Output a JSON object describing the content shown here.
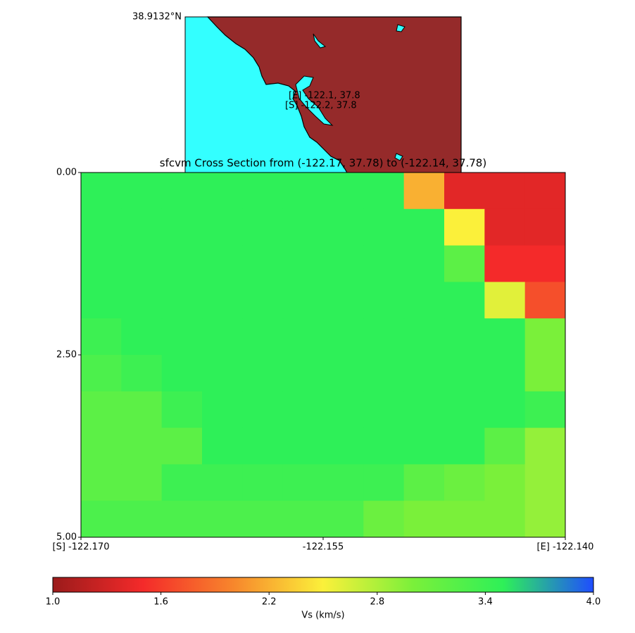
{
  "chart_data": {
    "type": "heatmap",
    "title": "sfcvm Cross Section from (-122.17, 37.78) to (-122.14, 37.78)",
    "xlim": [
      -122.17,
      -122.14
    ],
    "xticks": [
      {
        "value": -122.17,
        "label": "[S] -122.170"
      },
      {
        "value": -122.155,
        "label": "-122.155"
      },
      {
        "value": -122.14,
        "label": "[E] -122.140"
      }
    ],
    "ylim": [
      0,
      5
    ],
    "yticks": [
      {
        "value": 0,
        "label": "0.00"
      },
      {
        "value": 2.5,
        "label": "2.50"
      },
      {
        "value": 5,
        "label": "5.00"
      }
    ],
    "z": [
      [
        3.5,
        3.5,
        3.5,
        3.5,
        3.5,
        3.5,
        3.5,
        3.5,
        2.2,
        1.4,
        1.4,
        1.4
      ],
      [
        3.5,
        3.5,
        3.5,
        3.5,
        3.5,
        3.5,
        3.5,
        3.5,
        3.5,
        2.5,
        1.4,
        1.4
      ],
      [
        3.5,
        3.5,
        3.5,
        3.5,
        3.5,
        3.5,
        3.5,
        3.5,
        3.5,
        3.2,
        1.5,
        1.5
      ],
      [
        3.5,
        3.5,
        3.5,
        3.5,
        3.5,
        3.5,
        3.5,
        3.5,
        3.5,
        3.5,
        2.6,
        1.7
      ],
      [
        3.4,
        3.5,
        3.5,
        3.5,
        3.5,
        3.5,
        3.5,
        3.5,
        3.5,
        3.5,
        3.5,
        3.0
      ],
      [
        3.3,
        3.4,
        3.5,
        3.5,
        3.5,
        3.5,
        3.5,
        3.5,
        3.5,
        3.5,
        3.5,
        3.0
      ],
      [
        3.2,
        3.2,
        3.4,
        3.5,
        3.5,
        3.5,
        3.5,
        3.5,
        3.5,
        3.5,
        3.5,
        3.4
      ],
      [
        3.2,
        3.2,
        3.2,
        3.5,
        3.5,
        3.5,
        3.5,
        3.5,
        3.5,
        3.5,
        3.2,
        2.9
      ],
      [
        3.2,
        3.2,
        3.4,
        3.4,
        3.4,
        3.4,
        3.4,
        3.4,
        3.2,
        3.1,
        3.0,
        2.9
      ],
      [
        3.3,
        3.3,
        3.3,
        3.3,
        3.3,
        3.3,
        3.3,
        3.1,
        3.0,
        3.0,
        3.0,
        2.9
      ]
    ],
    "colormap": [
      "#9b1b1b",
      "#f42a2a",
      "#f7862c",
      "#fbf03a",
      "#7af03a",
      "#2ef058",
      "#1f4dff"
    ],
    "clim": [
      1.0,
      4.0
    ],
    "cticks": [
      {
        "value": 1.0,
        "label": "1.0"
      },
      {
        "value": 1.6,
        "label": "1.6"
      },
      {
        "value": 2.2,
        "label": "2.2"
      },
      {
        "value": 2.8,
        "label": "2.8"
      },
      {
        "value": 3.4,
        "label": "3.4"
      },
      {
        "value": 4.0,
        "label": "4.0"
      }
    ],
    "colorbar_label": "Vs (km/s)",
    "inset": {
      "lat_label": "38.9132°N",
      "labels": [
        "[E] -122.1, 37.8",
        "[S] -122.2, 37.8"
      ]
    }
  }
}
